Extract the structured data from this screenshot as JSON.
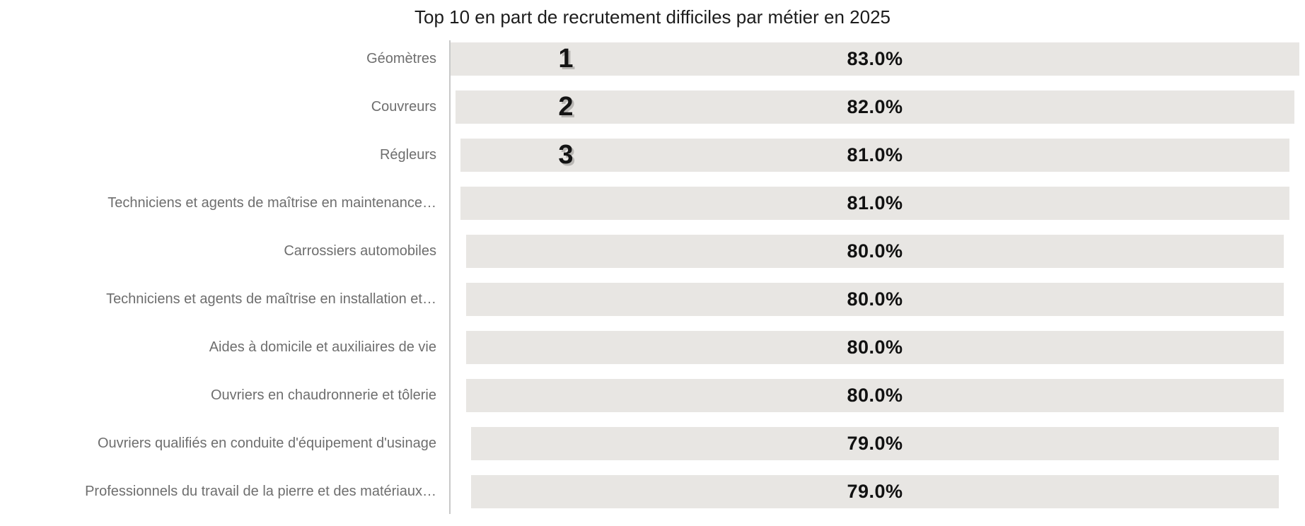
{
  "colors": {
    "background": "#ffffff",
    "bar": "#e8e6e3",
    "axis": "#c9c9c9",
    "category_label": "#6e6e6e",
    "value_label": "#111111",
    "rank": "#141414",
    "rank_shadow": "#b9b7b4",
    "title": "#1c1c1c"
  },
  "chart_data": {
    "type": "bar",
    "orientation": "horizontal-centered-funnel",
    "title": "Top 10 en part de recrutement difficiles par métier en 2025",
    "categories": [
      "Géomètres",
      "Couvreurs",
      "Régleurs",
      "Techniciens et agents de maîtrise en maintenance…",
      "Carrossiers automobiles",
      "Techniciens et agents de maîtrise en installation et…",
      "Aides à domicile et auxiliaires de vie",
      "Ouvriers en chaudronnerie et tôlerie",
      "Ouvriers qualifiés en conduite d'équipement d'usinage",
      "Professionnels du travail de la pierre et des matériaux…"
    ],
    "values": [
      83.0,
      82.0,
      81.0,
      81.0,
      80.0,
      80.0,
      80.0,
      80.0,
      79.0,
      79.0
    ],
    "value_labels": [
      "83.0%",
      "82.0%",
      "81.0%",
      "81.0%",
      "80.0%",
      "80.0%",
      "80.0%",
      "80.0%",
      "79.0%",
      "79.0%"
    ],
    "rank_labels": [
      "1",
      "2",
      "3",
      "",
      "",
      "",
      "",
      "",
      "",
      ""
    ],
    "xlabel": "",
    "ylabel": "",
    "value_axis_max": 83.0,
    "grid": false,
    "legend": false
  }
}
